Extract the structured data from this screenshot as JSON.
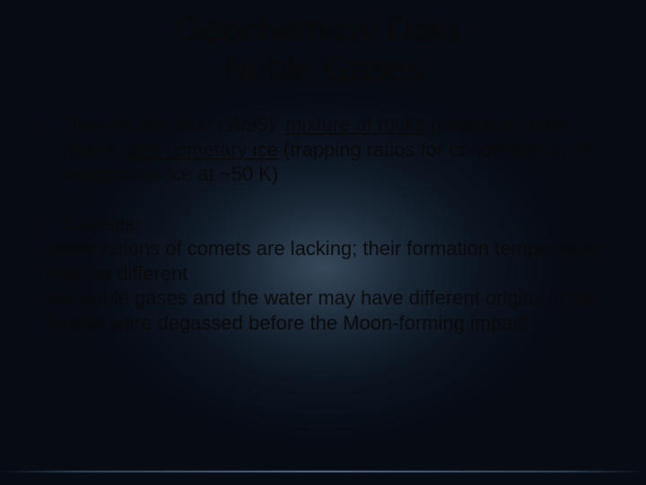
{
  "title_line1": "Geochemical Data:",
  "title_line2": "Noble Gases",
  "bullet_glyph": "G",
  "bullet1": {
    "lead": "Owen & Bar-Nun (1995):  ",
    "u1": "mixture of rocks",
    "mid1": " (devoid of noble gases) ",
    "u2": "and cometary ice",
    "tail": " (trapping ratios for condensation of amorphous ice at ~50 K)"
  },
  "bullet2": {
    "label": "Caveats:",
    "sub1": "- observations of comets are lacking; their formation temperature may be different",
    "sub2": "- the noble gases and the water may have different origins, if the former were degassed before the Moon-forming impact"
  },
  "colors": {
    "text": "#0a0a0a",
    "bg_deep": "#060b14",
    "swirl_light": "#5a7891",
    "swirl_mid": "#3c5a73"
  },
  "fontsizes": {
    "title": 38,
    "body": 22
  }
}
